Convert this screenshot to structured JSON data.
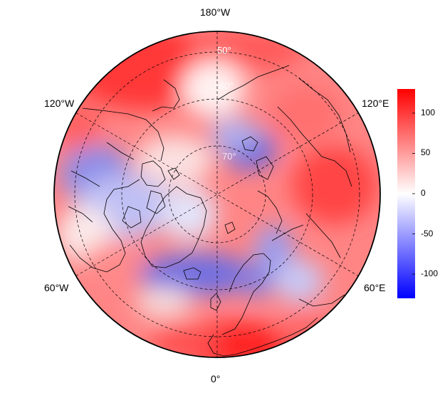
{
  "map": {
    "projection": "north-polar-stereographic",
    "longitude_labels": {
      "top": "180°W",
      "bottom": "0°",
      "upper_left": "120°W",
      "upper_right": "120°E",
      "lower_left": "60°W",
      "lower_right": "60°E"
    },
    "latitude_labels": [
      "50°",
      "60°",
      "70°"
    ],
    "colors": {
      "min": "#0000ff",
      "mid": "#ffffff",
      "max": "#ff0000",
      "graticule": "#000000",
      "frame": "#000000"
    }
  },
  "colorbar": {
    "range": [
      -130,
      130
    ],
    "ticks": [
      {
        "value": 100,
        "label": "100"
      },
      {
        "value": 50,
        "label": "50"
      },
      {
        "value": 0,
        "label": "0"
      },
      {
        "value": -50,
        "label": "-50"
      },
      {
        "value": -100,
        "label": "-100"
      }
    ]
  }
}
